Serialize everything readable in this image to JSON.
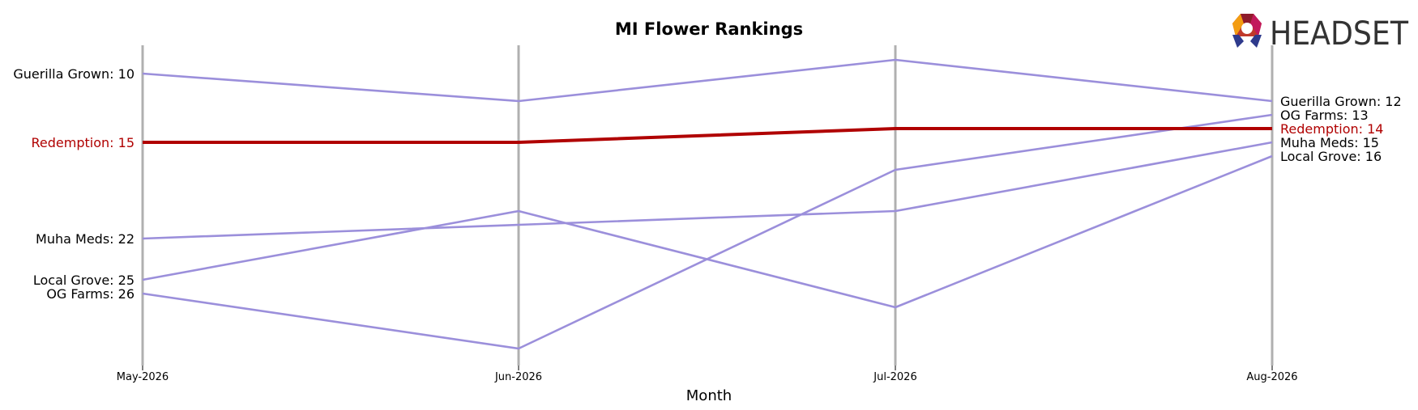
{
  "chart_data": {
    "type": "line",
    "title": "MI Flower Rankings",
    "xlabel": "Month",
    "ylabel": "",
    "categories": [
      "May-2026",
      "Jun-2026",
      "Jul-2026",
      "Aug-2026"
    ],
    "y_inverted": true,
    "ylim": [
      8,
      32
    ],
    "grid": "vertical lines at each month",
    "series": [
      {
        "name": "Guerilla Grown",
        "values": [
          10,
          12,
          9,
          12
        ],
        "color": "#9b8fdb",
        "highlight": false
      },
      {
        "name": "Redemption",
        "values": [
          15,
          15,
          14,
          14
        ],
        "color": "#b00000",
        "highlight": true
      },
      {
        "name": "Muha Meds",
        "values": [
          22,
          21,
          20,
          15
        ],
        "color": "#9b8fdb",
        "highlight": false
      },
      {
        "name": "Local Grove",
        "values": [
          25,
          20,
          27,
          16
        ],
        "color": "#9b8fdb",
        "highlight": false
      },
      {
        "name": "OG Farms",
        "values": [
          26,
          30,
          17,
          13
        ],
        "color": "#9b8fdb",
        "highlight": false
      }
    ]
  },
  "logo": {
    "text": "HEADSET",
    "icon": "headset-logo-icon"
  },
  "colors": {
    "highlight": "#b00000",
    "other": "#9b8fdb",
    "gridline": "#b0b0b0",
    "text": "#000000"
  }
}
